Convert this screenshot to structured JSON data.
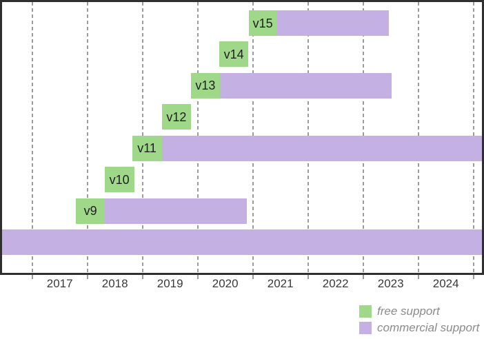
{
  "chart_data": {
    "type": "gantt",
    "title": "",
    "xlabel": "",
    "description": "Version support timeline: green = free support, purple = commercial support",
    "x_axis": {
      "range": [
        2016.45,
        2025.19
      ],
      "gridline_years": [
        2017,
        2018,
        2019,
        2020,
        2021,
        2022,
        2023,
        2024,
        2025
      ],
      "tick_labels": [
        "2017",
        "2018",
        "2019",
        "2020",
        "2021",
        "2022",
        "2023",
        "2024"
      ],
      "grid": "dashed-vertical"
    },
    "legend": [
      {
        "label": "free support",
        "color": "#a0d889"
      },
      {
        "label": "commercial support",
        "color": "#c5b0e4"
      }
    ],
    "legend_position": "bottom-right-outside",
    "rows": [
      {
        "label": "v15",
        "free": [
          2020.93,
          2021.43
        ],
        "commercial": [
          2021.43,
          2023.47
        ]
      },
      {
        "label": "v14",
        "free": [
          2020.39,
          2020.92
        ],
        "commercial": null
      },
      {
        "label": "v13",
        "free": [
          2019.88,
          2020.4
        ],
        "commercial": [
          2020.4,
          2023.52
        ]
      },
      {
        "label": "v12",
        "free": [
          2019.35,
          2019.88
        ],
        "commercial": null
      },
      {
        "label": "v11",
        "free": [
          2018.81,
          2019.35
        ],
        "commercial": [
          2019.35,
          2025.3
        ]
      },
      {
        "label": "v10",
        "free": [
          2018.31,
          2018.85
        ],
        "commercial": null
      },
      {
        "label": "v9",
        "free": [
          2017.79,
          2018.32
        ],
        "commercial": [
          2018.32,
          2020.89
        ]
      },
      {
        "label": "",
        "free": null,
        "commercial": [
          2016.3,
          2025.3
        ]
      }
    ],
    "colors": {
      "free": "#a0d889",
      "commercial": "#c5b0e4",
      "axis": "#2f2f2f",
      "gridline": "#9a9a9a",
      "tick_label_text": "#3a3a3a",
      "bar_label_text": "#1f1f1f",
      "legend_text": "#8b8b8b",
      "background": "#ffffff"
    }
  }
}
